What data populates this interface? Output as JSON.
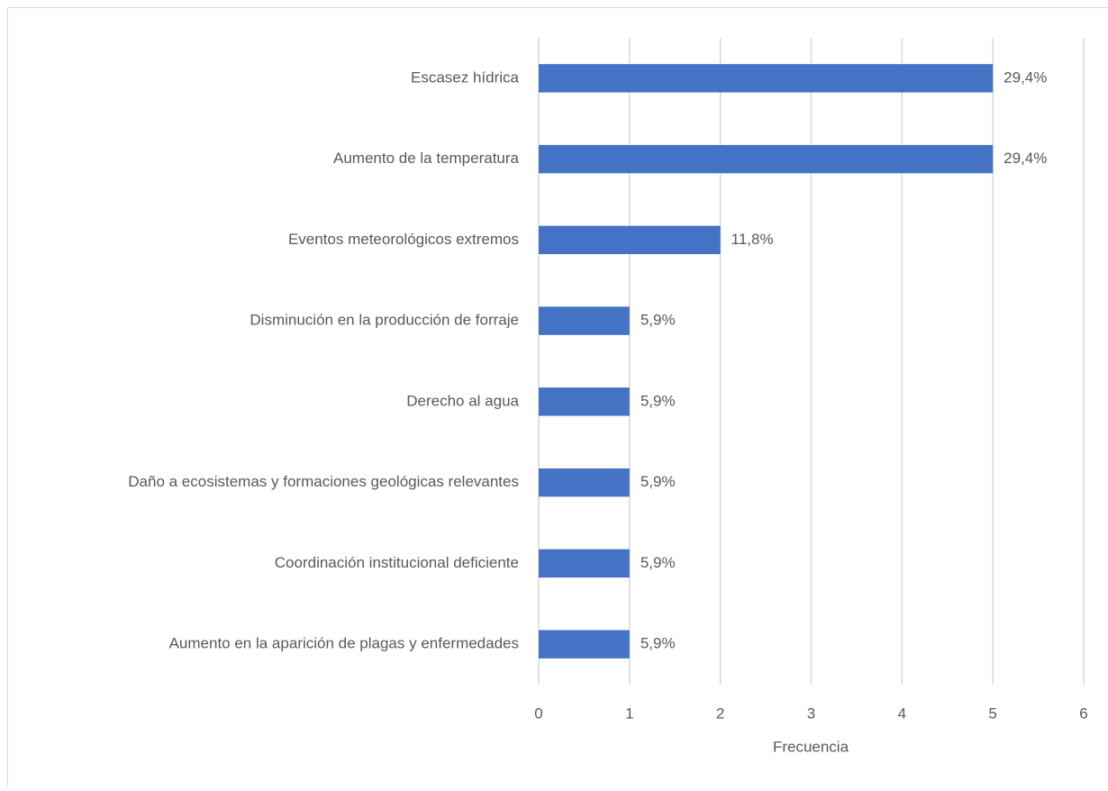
{
  "chart_data": {
    "type": "bar",
    "orientation": "horizontal",
    "categories": [
      "Escasez hídrica",
      "Aumento de la temperatura",
      "Eventos meteorológicos extremos",
      "Disminución en la producción de forraje",
      "Derecho al agua",
      "Daño a ecosistemas y formaciones geológicas relevantes",
      "Coordinación institucional deficiente",
      "Aumento en la aparición de plagas y enfermedades"
    ],
    "values": [
      5,
      5,
      2,
      1,
      1,
      1,
      1,
      1
    ],
    "value_labels": [
      "29,4%",
      "29,4%",
      "11,8%",
      "5,9%",
      "5,9%",
      "5,9%",
      "5,9%",
      "5,9%"
    ],
    "color": "#4472c4",
    "xlabel": "Frecuencia",
    "xlim": [
      0,
      6
    ],
    "xticks": [
      0,
      1,
      2,
      3,
      4,
      5,
      6
    ],
    "grid": true
  }
}
